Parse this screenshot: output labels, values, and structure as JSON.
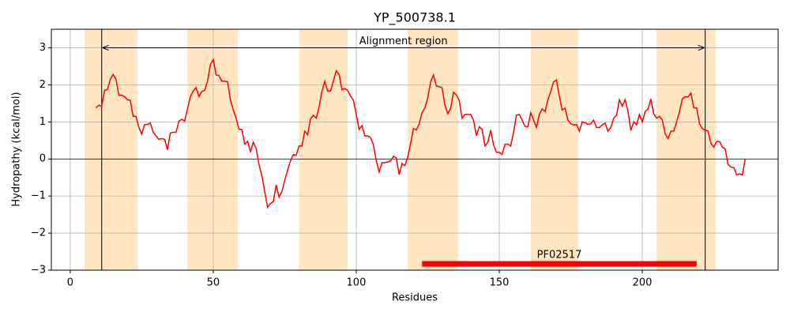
{
  "chart_data": {
    "type": "line",
    "title": "YP_500738.1",
    "x_label": "Residues",
    "y_label": "Hydropathy (kcal/mol)",
    "xlim": [
      -6.6,
      247.5
    ],
    "ylim": [
      -3,
      3.5
    ],
    "xticks": [
      0,
      50,
      100,
      150,
      200
    ],
    "yticks": [
      {
        "value": -3,
        "label": "−3"
      },
      {
        "value": -2,
        "label": "−2"
      },
      {
        "value": -1,
        "label": "−1"
      },
      0,
      1,
      2,
      3
    ],
    "grid": true,
    "hline": 0,
    "shaded_regions": [
      [
        5,
        23.5
      ],
      [
        41,
        58.6
      ],
      [
        80,
        97
      ],
      [
        118,
        135.6
      ],
      [
        161,
        177.6
      ],
      [
        205,
        225.7
      ]
    ],
    "shade_color": "#ffe6c0",
    "alignment_region": {
      "label": "Alignment region",
      "start": 11,
      "end": 222,
      "y": 3
    },
    "domains": [
      {
        "label": "PF02517",
        "start": 123,
        "end": 219,
        "y": -2.83,
        "color": "#ff0000"
      }
    ],
    "series": [
      {
        "color": "#ff0000",
        "x": [
          9,
          10,
          11,
          12,
          13,
          14,
          15,
          16,
          17,
          18,
          19,
          20,
          21,
          22,
          23,
          24,
          25,
          26,
          27,
          28,
          29,
          30,
          31,
          32,
          33,
          34,
          35,
          36,
          37,
          38,
          39,
          40,
          41,
          42,
          43,
          44,
          45,
          46,
          47,
          48,
          49,
          50,
          51,
          52,
          53,
          54,
          55,
          56,
          57,
          58,
          59,
          60,
          61,
          62,
          63,
          64,
          65,
          66,
          67,
          68,
          69,
          70,
          71,
          72,
          73,
          74,
          75,
          76,
          77,
          78,
          79,
          80,
          81,
          82,
          83,
          84,
          85,
          86,
          87,
          88,
          89,
          90,
          91,
          92,
          93,
          94,
          95,
          96,
          97,
          98,
          99,
          100,
          101,
          102,
          103,
          104,
          105,
          106,
          107,
          108,
          109,
          110,
          111,
          112,
          113,
          114,
          115,
          116,
          117,
          118,
          119,
          120,
          121,
          122,
          123,
          124,
          125,
          126,
          127,
          128,
          129,
          130,
          131,
          132,
          133,
          134,
          135,
          136,
          137,
          138,
          139,
          140,
          141,
          142,
          143,
          144,
          145,
          146,
          147,
          148,
          149,
          150,
          151,
          152,
          153,
          154,
          155,
          156,
          157,
          158,
          159,
          160,
          161,
          162,
          163,
          164,
          165,
          166,
          167,
          168,
          169,
          170,
          171,
          172,
          173,
          174,
          175,
          176,
          177,
          178,
          179,
          180,
          181,
          182,
          183,
          184,
          185,
          186,
          187,
          188,
          189,
          190,
          191,
          192,
          193,
          194,
          195,
          196,
          197,
          198,
          199,
          200,
          201,
          202,
          203,
          204,
          205,
          206,
          207,
          208,
          209,
          210,
          211,
          212,
          213,
          214,
          215,
          216,
          217,
          218,
          219,
          220,
          221,
          222,
          223,
          224,
          225,
          226,
          227,
          228,
          229,
          230,
          231,
          232,
          233,
          234,
          235,
          236
        ],
        "values": [
          1.38,
          1.45,
          1.42,
          1.85,
          1.87,
          2.15,
          2.28,
          2.15,
          1.72,
          1.72,
          1.68,
          1.6,
          1.58,
          1.15,
          1.15,
          0.85,
          0.67,
          0.93,
          0.93,
          0.97,
          0.72,
          0.62,
          0.53,
          0.55,
          0.53,
          0.25,
          0.7,
          0.72,
          0.72,
          1.02,
          1.07,
          1.02,
          1.35,
          1.68,
          1.83,
          1.93,
          1.68,
          1.82,
          1.85,
          2.1,
          2.55,
          2.68,
          2.27,
          2.25,
          2.1,
          2.1,
          2.08,
          1.6,
          1.32,
          1.1,
          0.8,
          0.8,
          0.4,
          0.48,
          0.2,
          0.45,
          0.28,
          -0.15,
          -0.45,
          -0.88,
          -1.3,
          -1.2,
          -1.15,
          -0.7,
          -1.03,
          -0.88,
          -0.58,
          -0.3,
          -0.05,
          0.12,
          0.1,
          0.35,
          0.35,
          0.75,
          0.65,
          1.08,
          1.18,
          1.1,
          1.4,
          1.83,
          2.1,
          1.83,
          1.83,
          2.1,
          2.38,
          2.28,
          1.87,
          1.9,
          1.85,
          1.7,
          1.58,
          1.2,
          0.8,
          0.9,
          0.62,
          0.62,
          0.58,
          0.38,
          -0.05,
          -0.35,
          -0.1,
          -0.1,
          -0.08,
          -0.05,
          0.07,
          0.03,
          -0.42,
          -0.12,
          -0.18,
          0.05,
          0.42,
          0.82,
          0.78,
          0.95,
          1.25,
          1.38,
          1.65,
          2.08,
          2.27,
          1.97,
          1.95,
          1.92,
          1.45,
          1.22,
          1.37,
          1.8,
          1.73,
          1.58,
          1.1,
          1.2,
          1.2,
          1.2,
          1.05,
          0.63,
          0.87,
          0.8,
          0.35,
          0.45,
          0.78,
          0.38,
          0.18,
          0.18,
          0.12,
          0.4,
          0.4,
          0.35,
          0.72,
          1.18,
          1.2,
          1.05,
          0.88,
          0.87,
          1.25,
          1.05,
          0.85,
          1.2,
          1.35,
          1.28,
          1.6,
          1.82,
          2.08,
          2.13,
          1.7,
          1.32,
          1.37,
          1.05,
          0.95,
          0.92,
          0.93,
          0.75,
          1.0,
          0.98,
          0.93,
          0.95,
          1.05,
          0.85,
          0.85,
          0.92,
          0.97,
          0.75,
          0.85,
          1.1,
          1.18,
          1.6,
          1.42,
          1.6,
          1.28,
          0.77,
          1.0,
          0.92,
          1.2,
          1.0,
          1.28,
          1.35,
          1.62,
          1.22,
          1.1,
          1.15,
          1.05,
          0.68,
          0.55,
          0.75,
          0.75,
          1.0,
          1.28,
          1.62,
          1.68,
          1.67,
          1.78,
          1.38,
          1.38,
          0.95,
          0.82,
          0.78,
          0.75,
          0.42,
          0.32,
          0.47,
          0.47,
          0.32,
          0.27,
          -0.15,
          -0.22,
          -0.23,
          -0.43,
          -0.4,
          -0.43,
          0
        ]
      }
    ]
  }
}
